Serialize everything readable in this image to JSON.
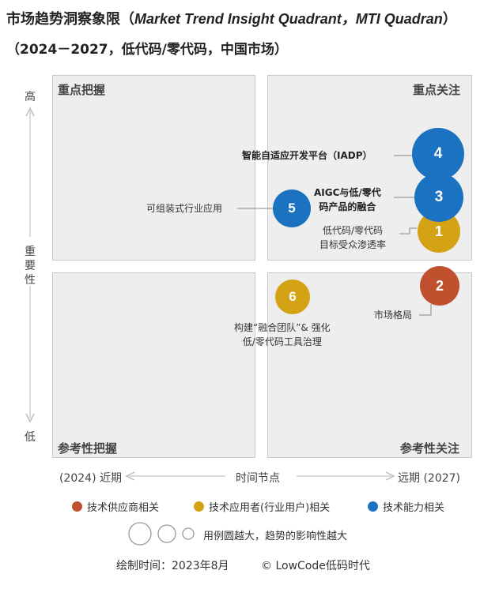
{
  "header": {
    "title_zh": "市场趋势洞察象限（",
    "title_en": "Market Trend Insight Quadrant，MTI Quadran",
    "title_close": "）",
    "subtitle": "（2024－2027，低代码/零代码，中国市场）"
  },
  "chart_data": {
    "type": "scatter",
    "quadrants": {
      "top_left": "重点把握",
      "top_right": "重点关注",
      "bottom_left": "参考性把握",
      "bottom_right": "参考性关注"
    },
    "y_axis": {
      "label": "重要性",
      "high": "高",
      "low": "低"
    },
    "x_axis": {
      "label": "时间节点",
      "near_year": "(2024)",
      "near": "近期",
      "far": "远期",
      "far_year": "(2027)"
    },
    "items": [
      {
        "id": "1",
        "label": "低代码/零代码目标受众渗透率",
        "label_lines": [
          "低代码/零代码",
          "目标受众渗透率"
        ],
        "category": "tech_user"
      },
      {
        "id": "2",
        "label": "市场格局",
        "category": "tech_supplier"
      },
      {
        "id": "3",
        "label": "AIGC与低/零代码产品的融合",
        "label_lines": [
          "AIGC与低/零代",
          "码产品的融合"
        ],
        "category": "tech_capability"
      },
      {
        "id": "4",
        "label": "智能自适应开发平台（IADP）",
        "category": "tech_capability"
      },
      {
        "id": "5",
        "label": "可组装式行业应用",
        "category": "tech_capability"
      },
      {
        "id": "6",
        "label": "构建“融合团队”&强化低/零代码工具治理",
        "label_lines": [
          "构建“融合团队”& 强化",
          "低/零代码工具治理"
        ],
        "category": "tech_user"
      }
    ],
    "legend": [
      {
        "key": "tech_supplier",
        "label": "技术供应商相关",
        "color": "#c0502e"
      },
      {
        "key": "tech_user",
        "label": "技术应用者(行业用户)相关",
        "color": "#d4a215"
      },
      {
        "key": "tech_capability",
        "label": "技术能力相关",
        "color": "#1a72c0"
      }
    ],
    "size_legend": "用例圆越大，趋势的影响性越大"
  },
  "footer": {
    "date": "绘制时间：2023年8月",
    "copyright": "© LowCode低码时代"
  }
}
